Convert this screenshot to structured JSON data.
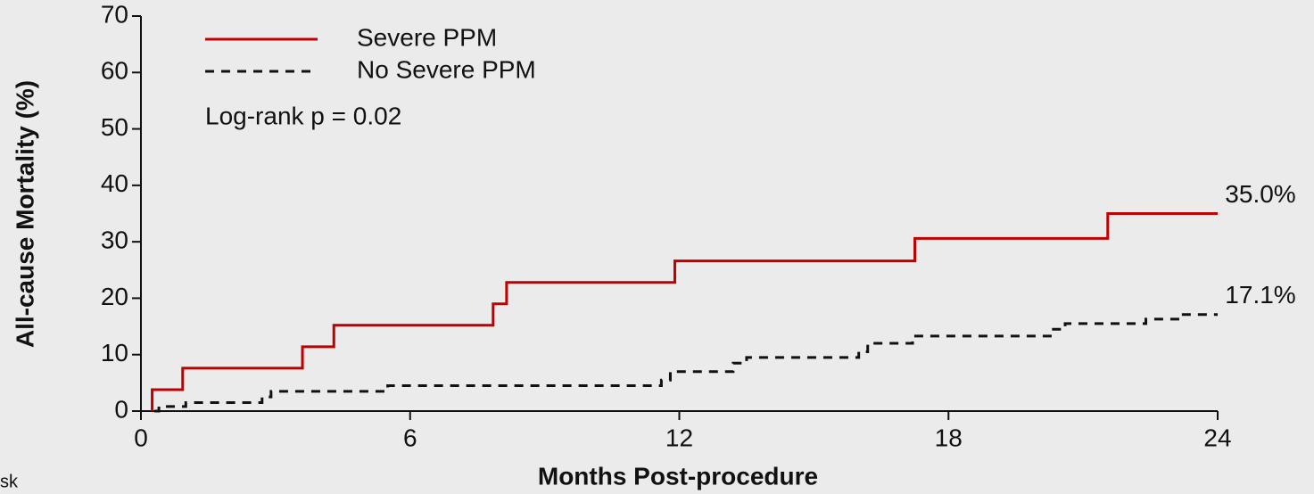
{
  "chart_data": {
    "type": "step",
    "xlabel": "Months Post-procedure",
    "ylabel": "All-cause Mortality (%)",
    "annotations": [
      "Log-rank p = 0.02",
      "sk"
    ],
    "xlim": [
      0,
      24
    ],
    "xticks": [
      0,
      6,
      12,
      18,
      24
    ],
    "ylim": [
      0,
      70
    ],
    "yticks": [
      0,
      10,
      20,
      30,
      40,
      50,
      60,
      70
    ],
    "grid": false,
    "legend": "upper left",
    "series": [
      {
        "name": "Severe PPM",
        "color": "#c00000",
        "style": "solid",
        "x": [
          0.25,
          0.25,
          0.93,
          3.6,
          4.3,
          7.85,
          8.15,
          11.9,
          17.25,
          21.55,
          24
        ],
        "values": [
          0,
          3.8,
          7.6,
          11.4,
          15.2,
          19,
          22.8,
          26.6,
          30.6,
          35,
          35
        ],
        "value_labels": [
          null,
          null,
          null,
          null,
          null,
          null,
          null,
          null,
          null,
          null,
          "35.0%"
        ]
      },
      {
        "name": "No Severe PPM",
        "color": "#111111",
        "style": "dashed",
        "x": [
          0.3,
          0.4,
          1.0,
          2.7,
          2.9,
          5.5,
          11.6,
          11.8,
          13.2,
          13.5,
          16,
          16.2,
          17.2,
          20.3,
          20.6,
          22.4,
          23.2,
          24
        ],
        "values": [
          0,
          0.8,
          1.5,
          2.5,
          3.5,
          4.5,
          5.5,
          7,
          8.5,
          9.5,
          10.5,
          12,
          13.3,
          14.5,
          15.5,
          16.3,
          17.1,
          17.1
        ],
        "value_labels": [
          null,
          null,
          null,
          null,
          null,
          null,
          null,
          null,
          null,
          null,
          null,
          null,
          null,
          null,
          null,
          null,
          null,
          "17.1%"
        ]
      }
    ]
  }
}
